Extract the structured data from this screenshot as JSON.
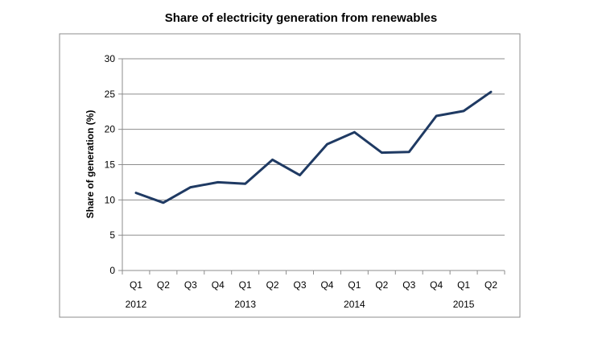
{
  "chart_data": {
    "type": "line",
    "title": "Share of electricity generation from renewables",
    "xlabel": "",
    "ylabel": "Share of generation (%)",
    "ylim": [
      0,
      30
    ],
    "yticks": [
      "0",
      "5",
      "10",
      "15",
      "20",
      "25",
      "30"
    ],
    "grid": true,
    "legend": "none",
    "categories": [
      "Q1",
      "Q2",
      "Q3",
      "Q4",
      "Q1",
      "Q2",
      "Q3",
      "Q4",
      "Q1",
      "Q2",
      "Q3",
      "Q4",
      "Q1",
      "Q2"
    ],
    "years": [
      {
        "label": "2012",
        "category_index": 0
      },
      {
        "label": "2013",
        "category_index": 4
      },
      {
        "label": "2014",
        "category_index": 8
      },
      {
        "label": "2015",
        "category_index": 12
      }
    ],
    "series": [
      {
        "values": [
          11.0,
          9.6,
          11.8,
          12.5,
          12.3,
          15.7,
          13.5,
          17.9,
          19.6,
          16.7,
          16.8,
          21.9,
          22.6,
          25.3
        ],
        "color": "#1f3a63"
      }
    ],
    "colors": {
      "line": "#1f3a63",
      "grid": "#8c8c8c",
      "frame": "#8c8c8c"
    }
  }
}
